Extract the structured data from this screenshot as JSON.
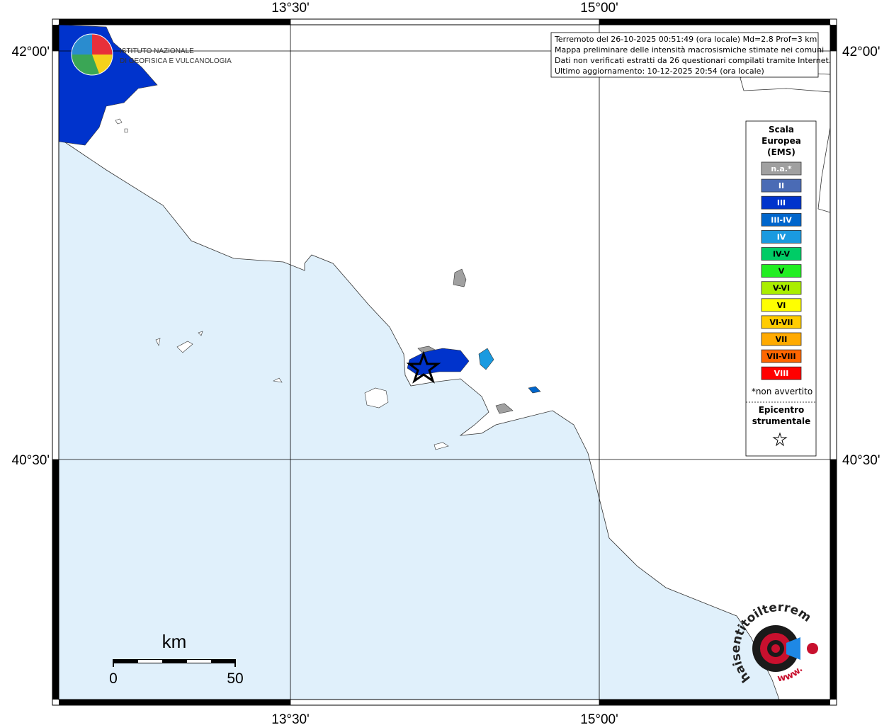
{
  "header": {
    "lines": [
      "Terremoto del 26-10-2025 00:51:49 (ora locale) Md=2.8 Prof=3 km",
      "Mappa preliminare delle intensità macrosismiche stimate nei comuni",
      "Dati non verificati estratti da 26 questionari compilati tramite Internet.",
      "Ultimo aggiornamento: 10-12-2025 20:54 (ora locale)"
    ]
  },
  "axes": {
    "lon_labels": [
      "13°30'",
      "15°00'"
    ],
    "lat_labels": [
      "42°00'",
      "40°30'"
    ]
  },
  "legend": {
    "title": [
      "Scala",
      "Europea",
      "(EMS)"
    ],
    "items": [
      {
        "label": "n.a.*",
        "color": "#a0a0a0",
        "text_color": "#ffffff"
      },
      {
        "label": "II",
        "color": "#4a6bb5",
        "text_color": "#ffffff"
      },
      {
        "label": "III",
        "color": "#0033cc",
        "text_color": "#ffffff"
      },
      {
        "label": "III-IV",
        "color": "#0066cc",
        "text_color": "#ffffff"
      },
      {
        "label": "IV",
        "color": "#1a9ae0",
        "text_color": "#ffffff"
      },
      {
        "label": "IV-V",
        "color": "#00cc66",
        "text_color": "#000000"
      },
      {
        "label": "V",
        "color": "#22ee22",
        "text_color": "#000000"
      },
      {
        "label": "V-VI",
        "color": "#aaee00",
        "text_color": "#000000"
      },
      {
        "label": "VI",
        "color": "#ffff00",
        "text_color": "#000000"
      },
      {
        "label": "VI-VII",
        "color": "#ffcc00",
        "text_color": "#000000"
      },
      {
        "label": "VII",
        "color": "#ffaa00",
        "text_color": "#000000"
      },
      {
        "label": "VII-VIII",
        "color": "#ff6600",
        "text_color": "#000000"
      },
      {
        "label": "VIII",
        "color": "#ff0000",
        "text_color": "#ffffff"
      }
    ],
    "note": "*non avvertito",
    "epicenter": [
      "Epicentro",
      "strumentale"
    ]
  },
  "scale_bar": {
    "unit": "km",
    "start": "0",
    "end": "50"
  },
  "logos": {
    "ingv": [
      "ISTITUTO NAZIONALE",
      "DI GEOFISICA E VULCANOLOGIA"
    ],
    "site": "haisentitoilterremoto.it",
    "www": "www."
  }
}
